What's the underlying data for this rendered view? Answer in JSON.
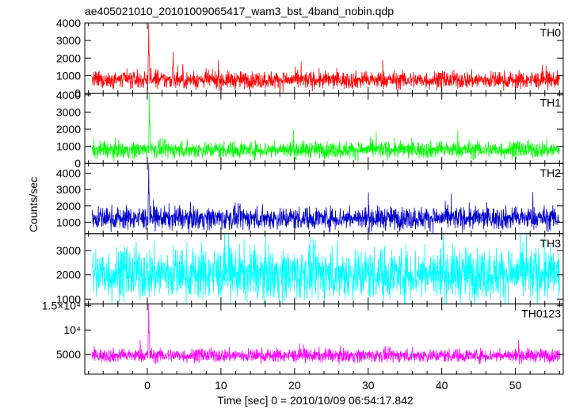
{
  "chart_data": {
    "type": "line",
    "title": "ae405021010_20101009065417_wam3_bst_4band_nobin.qdp",
    "xlabel": "Time [sec] 0 = 2010/10/09 06:54:17.842",
    "ylabel": "Counts/sec",
    "xlim": [
      -8.5,
      56.5
    ],
    "xticks": [
      0,
      10,
      20,
      30,
      40,
      50
    ],
    "grid": false,
    "panels": [
      {
        "name": "TH0",
        "color": "#ff0000",
        "ylim": [
          0,
          4000
        ],
        "yticks": [
          0,
          1000,
          2000,
          3000,
          4000
        ],
        "ytick_labels": [
          "0",
          "1000",
          "2000",
          "3000",
          "4000"
        ],
        "baseline": 750,
        "noise": 250,
        "peaks": [
          {
            "t": 0.2,
            "value": 3950
          },
          {
            "t": 3.5,
            "value": 2350
          }
        ]
      },
      {
        "name": "TH1",
        "color": "#00ff00",
        "ylim": [
          0,
          4100
        ],
        "yticks": [
          0,
          1000,
          2000,
          3000,
          4000
        ],
        "ytick_labels": [
          "0",
          "1000",
          "2000",
          "3000",
          "4000"
        ],
        "baseline": 800,
        "noise": 250,
        "peaks": [
          {
            "t": 0.3,
            "value": 4050
          }
        ]
      },
      {
        "name": "TH2",
        "color": "#0000cd",
        "ylim": [
          300,
          4600
        ],
        "yticks": [
          1000,
          2000,
          3000,
          4000
        ],
        "ytick_labels": [
          "1000",
          "2000",
          "3000",
          "4000"
        ],
        "baseline": 1250,
        "noise": 350,
        "peaks": [
          {
            "t": 0.2,
            "value": 4550
          }
        ]
      },
      {
        "name": "TH3",
        "color": "#00ffff",
        "ylim": [
          800,
          3700
        ],
        "yticks": [
          1000,
          2000,
          3000
        ],
        "ytick_labels": [
          "1000",
          "2000",
          "3000"
        ],
        "baseline": 2050,
        "noise": 550,
        "peaks": []
      },
      {
        "name": "TH0123",
        "color": "#ff00ff",
        "ylim": [
          1000,
          15300
        ],
        "yticks": [
          5000,
          10000,
          15000
        ],
        "ytick_labels": [
          "5000",
          "10⁴",
          "1.5×10⁴"
        ],
        "baseline": 4800,
        "noise": 700,
        "peaks": [
          {
            "t": 0.2,
            "value": 15200
          }
        ]
      }
    ]
  }
}
